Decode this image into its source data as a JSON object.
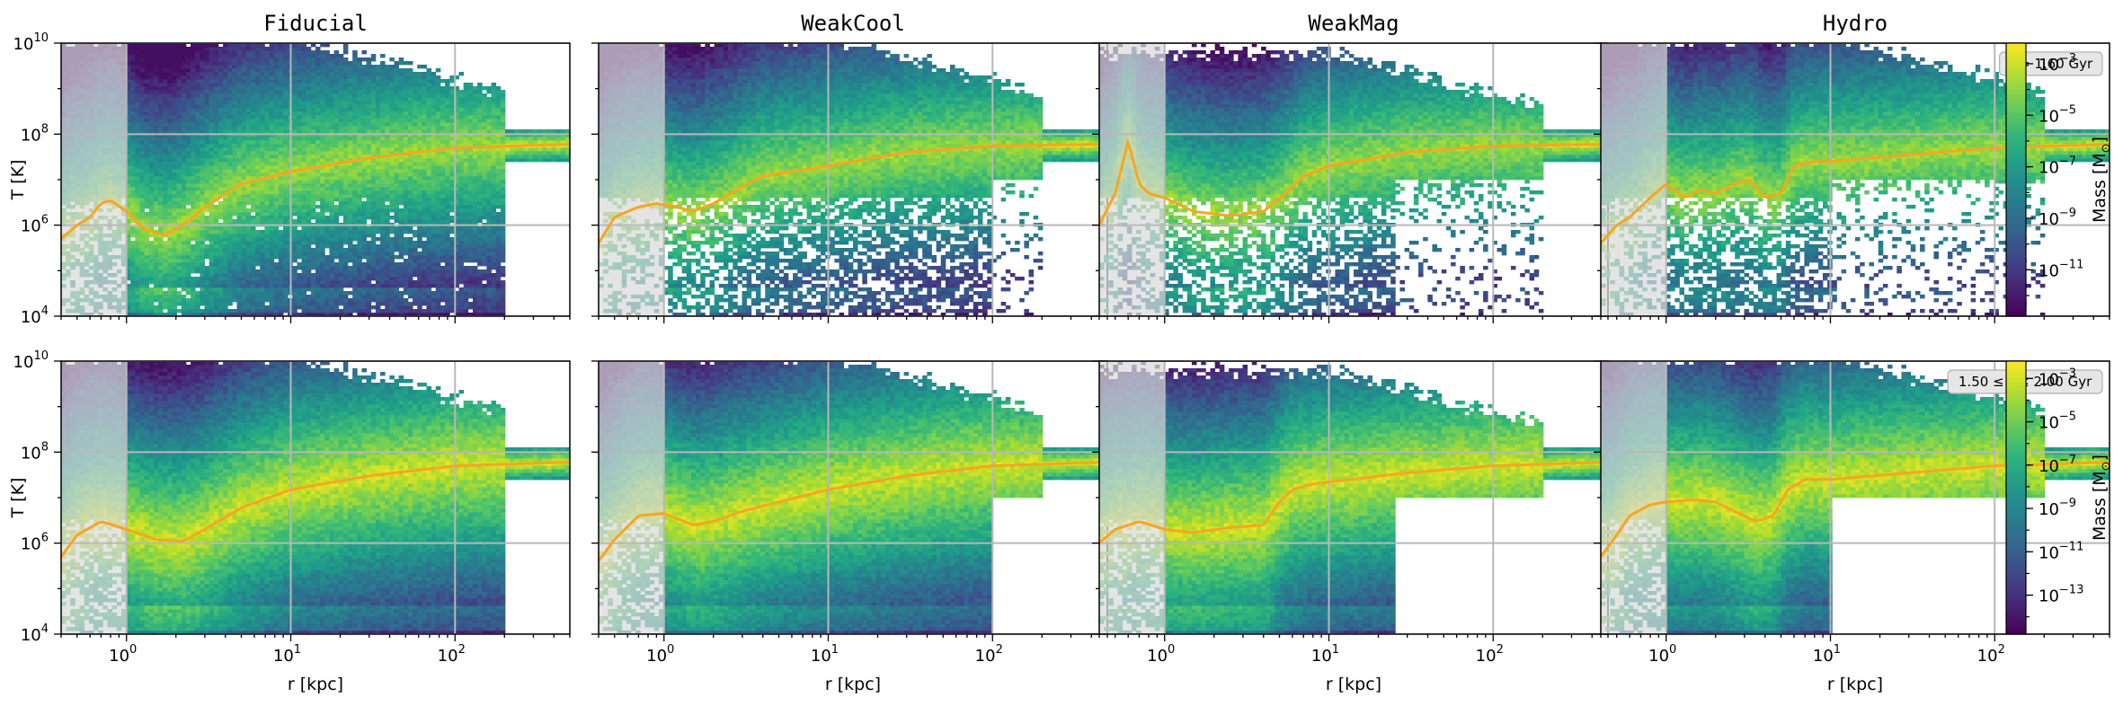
{
  "chart_data": {
    "type": "heatmap",
    "panel_titles": [
      "Fiducial",
      "WeakCool",
      "WeakMag",
      "Hydro"
    ],
    "xlabel": "r [kpc]",
    "ylabel": "T [K]",
    "x_scale": "log",
    "y_scale": "log",
    "xlim": [
      0.4,
      500
    ],
    "ylim": [
      10000,
      10000000000
    ],
    "x_ticks": [
      {
        "value": 1,
        "exp": "0"
      },
      {
        "value": 10,
        "exp": "1"
      },
      {
        "value": 100,
        "exp": "2"
      }
    ],
    "y_ticks": [
      {
        "value": 10000,
        "exp": "4"
      },
      {
        "value": 1000000,
        "exp": "6"
      },
      {
        "value": 100000000,
        "exp": "8"
      },
      {
        "value": 10000000000,
        "exp": "10"
      }
    ],
    "grid": true,
    "shaded_region_r_max_kpc": 1,
    "colorbar_label_prefix": "Mass [M",
    "colorbar_label_suffix": "]",
    "rows": [
      {
        "annotation": "t = 1.60 Gyr",
        "colorbar_range_log": [
          -12.8,
          -2.2
        ],
        "colorbar_ticks": [
          {
            "value": -3,
            "exp": "−3"
          },
          {
            "value": -5,
            "exp": "−5"
          },
          {
            "value": -7,
            "exp": "−7"
          },
          {
            "value": -9,
            "exp": "−9"
          },
          {
            "value": -11,
            "exp": "−11"
          }
        ],
        "median_profiles": [
          {
            "name": "Fiducial",
            "r": [
              0.4,
              0.5,
              0.6,
              0.7,
              0.8,
              1.0,
              1.3,
              1.7,
              2.2,
              3,
              5,
              10,
              30,
              100,
              500
            ],
            "T": [
              500000,
              1000000,
              1500000,
              3000000,
              3500000,
              2000000,
              800000,
              600000,
              1000000,
              2500000,
              8000000,
              15000000,
              30000000,
              50000000,
              60000000
            ]
          },
          {
            "name": "WeakCool",
            "r": [
              0.4,
              0.5,
              0.7,
              0.9,
              1.2,
              1.5,
              2,
              3,
              4,
              6,
              10,
              30,
              100,
              500
            ],
            "T": [
              400000,
              1500000,
              2500000,
              3000000,
              2500000,
              2000000,
              3000000,
              7000000,
              12000000,
              15000000,
              20000000,
              40000000,
              55000000,
              60000000
            ]
          },
          {
            "name": "WeakMag",
            "r": [
              0.4,
              0.5,
              0.6,
              0.7,
              0.8,
              1.0,
              1.5,
              2.5,
              4,
              5.5,
              7,
              10,
              30,
              100,
              500
            ],
            "T": [
              1000000,
              5000000,
              70000000,
              8000000,
              5000000,
              4000000,
              2000000,
              1600000,
              2000000,
              5000000,
              12000000,
              20000000,
              40000000,
              55000000,
              60000000
            ]
          },
          {
            "name": "Hydro",
            "r": [
              0.4,
              0.5,
              0.6,
              0.8,
              1.0,
              1.3,
              1.6,
              2,
              2.6,
              3.2,
              4,
              5,
              6,
              8,
              10,
              30,
              100,
              500
            ],
            "T": [
              400000,
              1000000,
              1500000,
              4000000,
              8000000,
              4000000,
              6000000,
              5000000,
              8000000,
              10000000,
              4000000,
              5000000,
              20000000,
              25000000,
              25000000,
              35000000,
              50000000,
              60000000
            ]
          }
        ]
      },
      {
        "annotation": "1.50 ≤ t ≤ 2.00 Gyr",
        "colorbar_range_log": [
          -14.8,
          -2.2
        ],
        "colorbar_ticks": [
          {
            "value": -3,
            "exp": "−3"
          },
          {
            "value": -5,
            "exp": "−5"
          },
          {
            "value": -7,
            "exp": "−7"
          },
          {
            "value": -9,
            "exp": "−9"
          },
          {
            "value": -11,
            "exp": "−11"
          },
          {
            "value": -13,
            "exp": "−13"
          }
        ],
        "median_profiles": [
          {
            "name": "Fiducial",
            "r": [
              0.4,
              0.5,
              0.7,
              1.0,
              1.5,
              2.2,
              3,
              5,
              10,
              30,
              100,
              500
            ],
            "T": [
              500000,
              1500000,
              3000000,
              2000000,
              1200000,
              1100000,
              2000000,
              6000000,
              15000000,
              30000000,
              50000000,
              60000000
            ]
          },
          {
            "name": "WeakCool",
            "r": [
              0.4,
              0.5,
              0.7,
              1.0,
              1.5,
              2,
              3,
              5,
              10,
              30,
              100,
              500
            ],
            "T": [
              400000,
              1200000,
              4000000,
              4500000,
              2500000,
              3000000,
              5000000,
              8000000,
              15000000,
              30000000,
              50000000,
              60000000
            ]
          },
          {
            "name": "WeakMag",
            "r": [
              0.4,
              0.5,
              0.7,
              1.0,
              1.5,
              2.5,
              4,
              5,
              6,
              8,
              10,
              30,
              100,
              500
            ],
            "T": [
              1000000,
              2000000,
              3000000,
              2000000,
              1700000,
              2200000,
              2500000,
              8000000,
              15000000,
              20000000,
              22000000,
              35000000,
              50000000,
              60000000
            ]
          },
          {
            "name": "Hydro",
            "r": [
              0.4,
              0.5,
              0.6,
              0.8,
              1.0,
              1.5,
              2,
              2.6,
              3.5,
              4.5,
              5.5,
              7,
              10,
              30,
              100,
              500
            ],
            "T": [
              500000,
              1500000,
              4000000,
              7000000,
              8000000,
              9000000,
              8000000,
              5000000,
              3000000,
              4000000,
              15000000,
              25000000,
              25000000,
              35000000,
              50000000,
              60000000
            ]
          }
        ]
      }
    ]
  },
  "colors": {
    "median_line": "#f5a623",
    "shaded_region": "#d9d9d9",
    "grid": "#b8b8b8",
    "annotation_box_fill": "#e6e6e6",
    "annotation_box_stroke": "#b0b0b0"
  }
}
